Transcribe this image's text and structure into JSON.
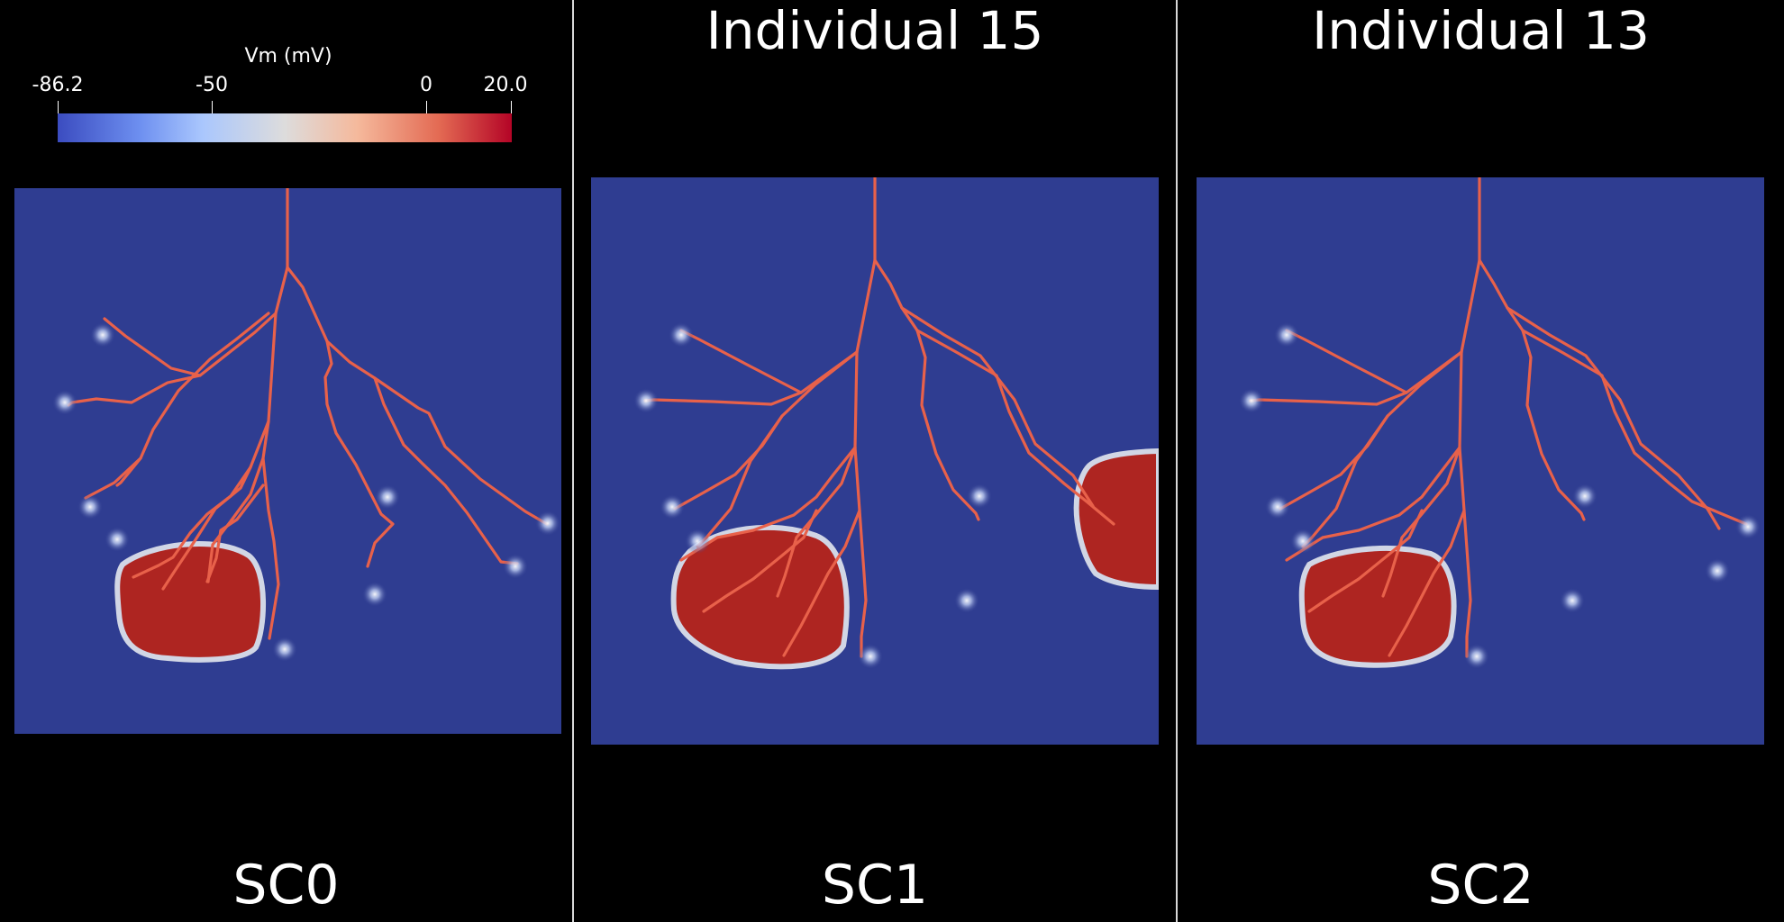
{
  "colorbar": {
    "title": "Vm (mV)",
    "ticks": [
      {
        "label": "-86.2",
        "value": -86.2
      },
      {
        "label": "-50",
        "value": -50
      },
      {
        "label": "0",
        "value": 0
      },
      {
        "label": "20.0",
        "value": 20.0
      }
    ],
    "range": [
      -86.2,
      20.0
    ],
    "colors": [
      "#3b4cc0",
      "#dddcdc",
      "#b40426"
    ]
  },
  "panels": [
    {
      "title": "",
      "caption": "SC0"
    },
    {
      "title": "Individual 15",
      "caption": "SC1"
    },
    {
      "title": "Individual 13",
      "caption": "SC2"
    }
  ],
  "colors": {
    "background": "#000000",
    "tissue": "#2f3d91",
    "purkinje": "#e8614a",
    "activation": "#b3251e",
    "divider": "#d8d8d8"
  }
}
